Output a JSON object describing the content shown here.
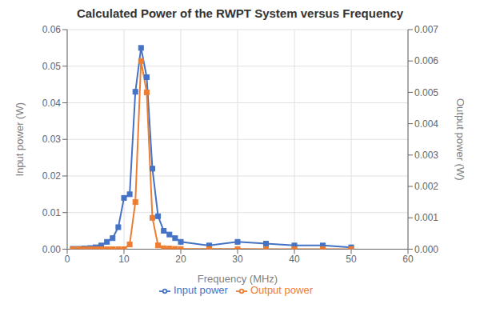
{
  "chart_data": {
    "type": "line",
    "title": "Calculated Power of the RWPT System versus Frequency",
    "xlabel": "Frequency (MHz)",
    "ylabel": "Input power (W)",
    "y2label": "Output power (W)",
    "x": [
      1,
      2,
      3,
      4,
      5,
      6,
      7,
      8,
      9,
      10,
      11,
      12,
      13,
      14,
      15,
      16,
      17,
      18,
      19,
      20,
      25,
      30,
      35,
      40,
      45,
      50
    ],
    "series": [
      {
        "name": "Input power",
        "color": "#4472C4",
        "marker": "square",
        "values": [
          0.0001,
          0.0001,
          0.0002,
          0.0003,
          0.0005,
          0.001,
          0.002,
          0.003,
          0.006,
          0.014,
          0.015,
          0.043,
          0.055,
          0.047,
          0.022,
          0.009,
          0.005,
          0.004,
          0.003,
          0.002,
          0.001,
          0.002,
          0.0015,
          0.001,
          0.001,
          0.0005
        ]
      },
      {
        "name": "Output power",
        "color": "#ED7D31",
        "marker": "square",
        "axis": "y2",
        "values": [
          0.0,
          0.0,
          0.0,
          0.0,
          0.0,
          0.0,
          0.0,
          0.0,
          0.0,
          0.0,
          0.00015,
          0.0015,
          0.006,
          0.005,
          0.001,
          0.00012,
          3e-05,
          2e-05,
          1e-05,
          5e-06,
          3e-06,
          2e-06,
          1e-06,
          0.0,
          0.0,
          0.0
        ]
      }
    ],
    "xlim": [
      0,
      60
    ],
    "xticks": [
      0,
      10,
      20,
      30,
      40,
      50,
      60
    ],
    "ylim": [
      0,
      0.06
    ],
    "yticks": [
      {
        "value": 0,
        "label": "0.00"
      },
      {
        "value": 0.01,
        "label": "0.01"
      },
      {
        "value": 0.02,
        "label": "0.02"
      },
      {
        "value": 0.03,
        "label": "0.03"
      },
      {
        "value": 0.04,
        "label": "0.04"
      },
      {
        "value": 0.05,
        "label": "0.05"
      },
      {
        "value": 0.06,
        "label": "0.06"
      }
    ],
    "y2lim": [
      0,
      0.007
    ],
    "y2ticks": [
      {
        "value": 0,
        "label": "0.000"
      },
      {
        "value": 0.001,
        "label": "0.001"
      },
      {
        "value": 0.002,
        "label": "0.002"
      },
      {
        "value": 0.003,
        "label": "0.003"
      },
      {
        "value": 0.004,
        "label": "0.004"
      },
      {
        "value": 0.005,
        "label": "0.005"
      },
      {
        "value": 0.006,
        "label": "0.006"
      },
      {
        "value": 0.007,
        "label": "0.007"
      }
    ],
    "grid": true,
    "legend": "bottom"
  }
}
